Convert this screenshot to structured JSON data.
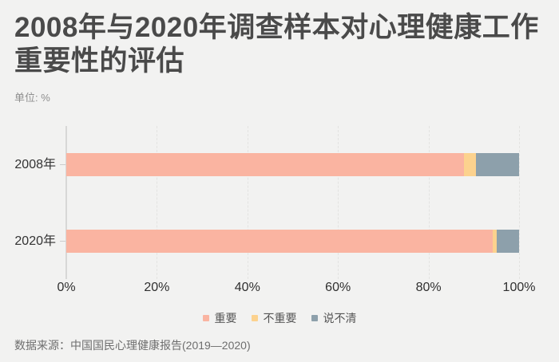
{
  "header": {
    "title_lines": [
      "2008年与2020年调查样本对心理健康工作",
      "重要性的评估"
    ],
    "unit_label": "单位: %"
  },
  "chart_data": {
    "type": "bar",
    "orientation": "horizontal",
    "stacked": true,
    "title": "2008年与2020年调查样本对心理健康工作重要性的评估",
    "unit": "%",
    "categories": [
      "2008年",
      "2020年"
    ],
    "series": [
      {
        "name": "重要",
        "color": "#fab4a1",
        "values": [
          87.9,
          94.1
        ]
      },
      {
        "name": "不重要",
        "color": "#fcd28e",
        "values": [
          2.6,
          1.0
        ]
      },
      {
        "name": "说不清",
        "color": "#8da0ab",
        "values": [
          9.5,
          4.9
        ]
      }
    ],
    "x_axis": {
      "min": 0,
      "max": 100,
      "tick_labels": [
        "0%",
        "20%",
        "40%",
        "60%",
        "80%",
        "100%"
      ]
    },
    "grid": "vertical-dashed",
    "legend_position": "bottom-center"
  },
  "footer": {
    "source": "数据来源：中国国民心理健康报告(2019—2020)"
  },
  "colors": {
    "background": "#f2f2f1",
    "title": "#4a4a4a",
    "axis_line": "#d8d8d7",
    "gridline": "#e3e3e1",
    "tick_mark": "#cccccc",
    "tick_label": "#2f2f2f",
    "unit_label": "#8f8f8f",
    "legend_label": "#555555",
    "source": "#6e6e6e"
  }
}
